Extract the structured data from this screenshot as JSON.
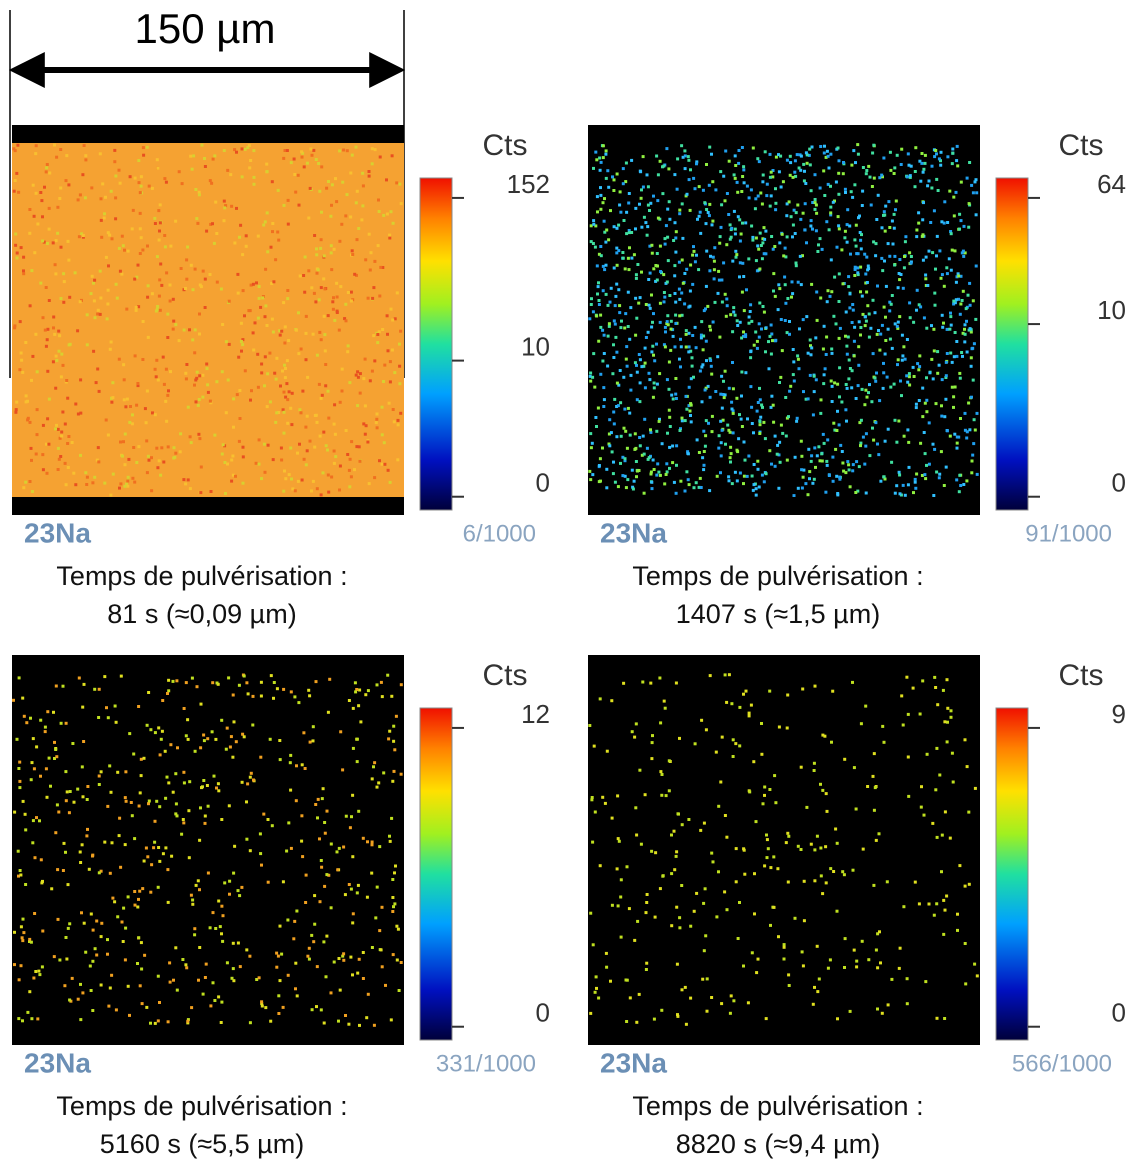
{
  "scale_bar": {
    "label": "150 µm"
  },
  "panels": [
    {
      "isotope": "23Na",
      "frame": "6/1000",
      "colorbar_label": "Cts",
      "ticks": [
        "152",
        "10",
        "0"
      ],
      "caption": [
        "Temps de pulvérisation :",
        "81 s (≈0,09 µm)"
      ]
    },
    {
      "isotope": "23Na",
      "frame": "91/1000",
      "colorbar_label": "Cts",
      "ticks": [
        "64",
        "10",
        "0"
      ],
      "caption": [
        "Temps de pulvérisation :",
        "1407 s (≈1,5 µm)"
      ]
    },
    {
      "isotope": "23Na",
      "frame": "331/1000",
      "colorbar_label": "Cts",
      "ticks": [
        "12",
        "0"
      ],
      "caption": [
        "Temps de pulvérisation :",
        "5160 s (≈5,5 µm)"
      ]
    },
    {
      "isotope": "23Na",
      "frame": "566/1000",
      "colorbar_label": "Cts",
      "ticks": [
        "9",
        "0"
      ],
      "caption": [
        "Temps de pulvérisation :",
        "8820 s (≈9,4 µm)"
      ]
    }
  ]
}
